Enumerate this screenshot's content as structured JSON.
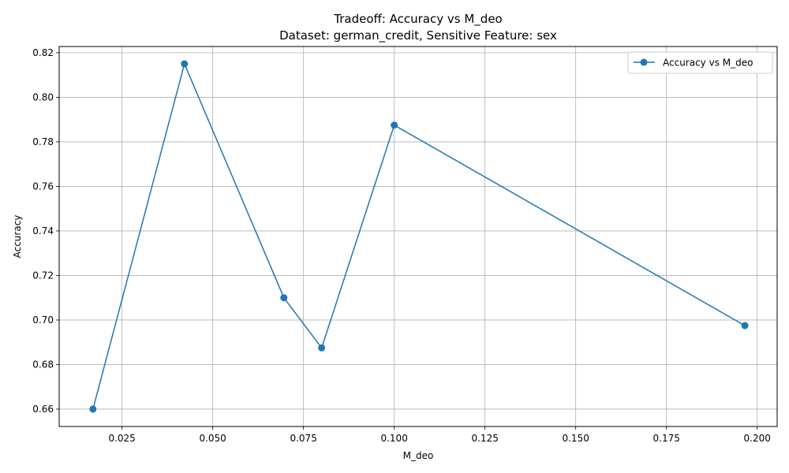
{
  "chart_data": {
    "type": "line",
    "title": "Tradeoff: Accuracy vs M_deo",
    "subtitle": "Dataset: german_credit, Sensitive Feature: sex",
    "xlabel": "M_deo",
    "ylabel": "Accuracy",
    "xlim": [
      0.00769,
      0.2055
    ],
    "ylim": [
      0.6522,
      0.8228
    ],
    "x_ticks": [
      0.025,
      0.05,
      0.075,
      0.1,
      0.125,
      0.15,
      0.175,
      0.2
    ],
    "x_tick_labels": [
      "0.025",
      "0.050",
      "0.075",
      "0.100",
      "0.125",
      "0.150",
      "0.175",
      "0.200"
    ],
    "y_ticks": [
      0.66,
      0.68,
      0.7,
      0.72,
      0.74,
      0.76,
      0.78,
      0.8,
      0.82
    ],
    "y_tick_labels": [
      "0.66",
      "0.68",
      "0.70",
      "0.72",
      "0.74",
      "0.76",
      "0.78",
      "0.80",
      "0.82"
    ],
    "grid": true,
    "legend_position": "top-right",
    "series": [
      {
        "name": "Accuracy vs M_deo",
        "color": "#1f77b4",
        "marker": "circle",
        "x": [
          0.017,
          0.0422,
          0.0696,
          0.08,
          0.1,
          0.1966
        ],
        "y": [
          0.66,
          0.815,
          0.71,
          0.6875,
          0.7875,
          0.6975
        ]
      }
    ]
  }
}
